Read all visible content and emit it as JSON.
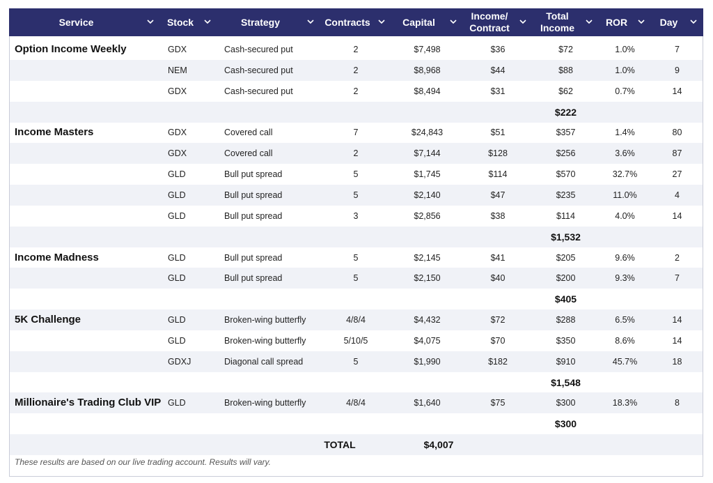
{
  "table": {
    "columns": [
      [
        "Service"
      ],
      [
        "Stock"
      ],
      [
        "Strategy"
      ],
      [
        "Contracts"
      ],
      [
        "Capital"
      ],
      [
        "Income/",
        "Contract"
      ],
      [
        "Total",
        "Income"
      ],
      [
        "ROR"
      ],
      [
        "Day"
      ]
    ],
    "groups": [
      {
        "name": "Option Income Weekly",
        "trades": [
          [
            "GDX",
            "Cash-secured put",
            "2",
            "$7,498",
            "$36",
            "$72",
            "1.0%",
            "7"
          ],
          [
            "NEM",
            "Cash-secured put",
            "2",
            "$8,968",
            "$44",
            "$88",
            "1.0%",
            "9"
          ],
          [
            "GDX",
            "Cash-secured put",
            "2",
            "$8,494",
            "$31",
            "$62",
            "0.7%",
            "14"
          ]
        ],
        "subtotal": "$222"
      },
      {
        "name": "Income Masters",
        "trades": [
          [
            "GDX",
            "Covered call",
            "7",
            "$24,843",
            "$51",
            "$357",
            "1.4%",
            "80"
          ],
          [
            "GDX",
            "Covered call",
            "2",
            "$7,144",
            "$128",
            "$256",
            "3.6%",
            "87"
          ],
          [
            "GLD",
            "Bull put spread",
            "5",
            "$1,745",
            "$114",
            "$570",
            "32.7%",
            "27"
          ],
          [
            "GLD",
            "Bull put spread",
            "5",
            "$2,140",
            "$47",
            "$235",
            "11.0%",
            "4"
          ],
          [
            "GLD",
            "Bull put spread",
            "3",
            "$2,856",
            "$38",
            "$114",
            "4.0%",
            "14"
          ]
        ],
        "subtotal": "$1,532"
      },
      {
        "name": "Income Madness",
        "trades": [
          [
            "GLD",
            "Bull put spread",
            "5",
            "$2,145",
            "$41",
            "$205",
            "9.6%",
            "2"
          ],
          [
            "GLD",
            "Bull put spread",
            "5",
            "$2,150",
            "$40",
            "$200",
            "9.3%",
            "7"
          ]
        ],
        "subtotal": "$405"
      },
      {
        "name": "5K Challenge",
        "trades": [
          [
            "GLD",
            "Broken-wing butterfly",
            "4/8/4",
            "$4,432",
            "$72",
            "$288",
            "6.5%",
            "14"
          ],
          [
            "GLD",
            "Broken-wing butterfly",
            "5/10/5",
            "$4,075",
            "$70",
            "$350",
            "8.6%",
            "14"
          ],
          [
            "GDXJ",
            "Diagonal call spread",
            "5",
            "$1,990",
            "$182",
            "$910",
            "45.7%",
            "18"
          ]
        ],
        "subtotal": "$1,548"
      },
      {
        "name": "Millionaire's Trading Club VIP",
        "trades": [
          [
            "GLD",
            "Broken-wing butterfly",
            "4/8/4",
            "$1,640",
            "$75",
            "$300",
            "18.3%",
            "8"
          ]
        ],
        "subtotal": "$300"
      }
    ],
    "total": {
      "label": "TOTAL",
      "value": "$4,007"
    }
  },
  "footnote": "These results are based on our live trading account. Results will vary."
}
